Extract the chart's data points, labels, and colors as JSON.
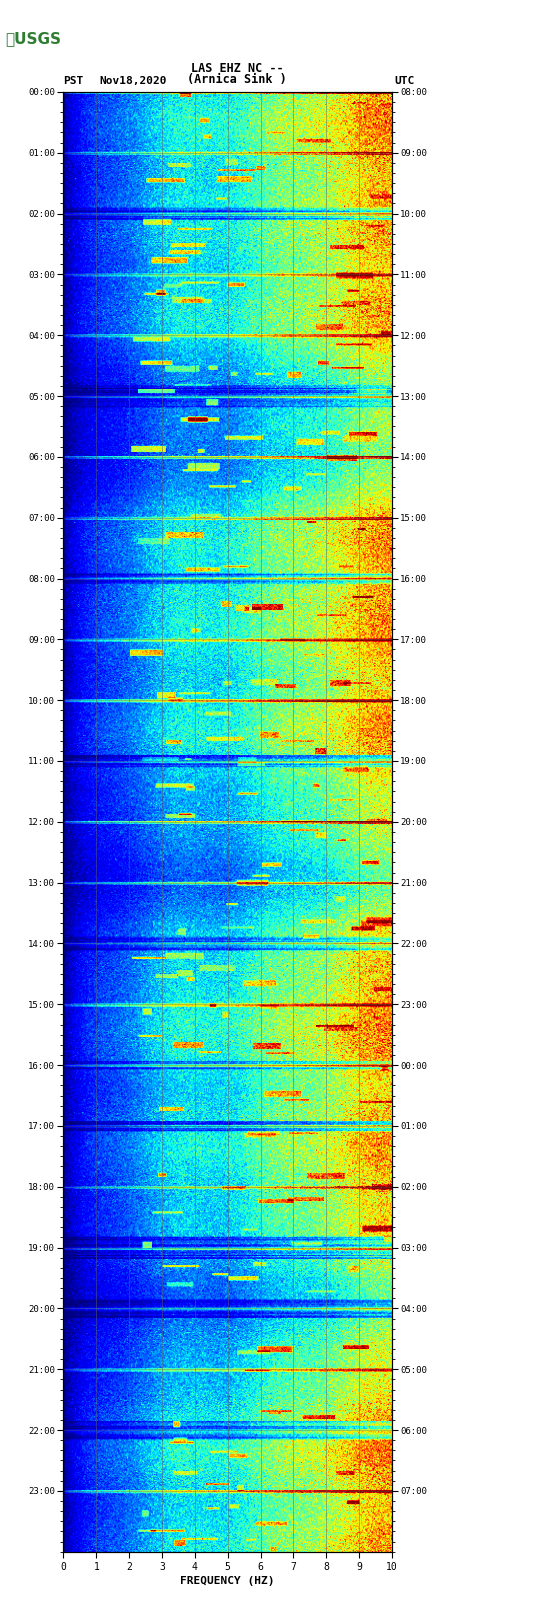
{
  "title_line1": "LAS EHZ NC --",
  "title_line2": "(Arnica Sink )",
  "left_label": "PST",
  "right_label": "UTC",
  "date_label": "Nov18,2020",
  "xlabel": "FREQUENCY (HZ)",
  "pst_ticks": [
    "00:00",
    "01:00",
    "02:00",
    "03:00",
    "04:00",
    "05:00",
    "06:00",
    "07:00",
    "08:00",
    "09:00",
    "10:00",
    "11:00",
    "12:00",
    "13:00",
    "14:00",
    "15:00",
    "16:00",
    "17:00",
    "18:00",
    "19:00",
    "20:00",
    "21:00",
    "22:00",
    "23:00"
  ],
  "utc_ticks": [
    "08:00",
    "09:00",
    "10:00",
    "11:00",
    "12:00",
    "13:00",
    "14:00",
    "15:00",
    "16:00",
    "17:00",
    "18:00",
    "19:00",
    "20:00",
    "21:00",
    "22:00",
    "23:00",
    "00:00",
    "01:00",
    "02:00",
    "03:00",
    "04:00",
    "05:00",
    "06:00",
    "07:00"
  ],
  "freq_min": 0,
  "freq_max": 10,
  "freq_ticks": [
    0,
    1,
    2,
    3,
    4,
    5,
    6,
    7,
    8,
    9,
    10
  ],
  "time_hours": 24,
  "colormap": "jet",
  "background_color": "#ffffff",
  "plot_bg": "#000080",
  "fig_width": 5.52,
  "fig_height": 16.13,
  "dpi": 100,
  "usgs_color": "#2e7d32",
  "grid_color": "#606060",
  "text_color": "#000000",
  "colorbar_bg": "#000000",
  "vmin": 0.0,
  "vmax": 1.0
}
